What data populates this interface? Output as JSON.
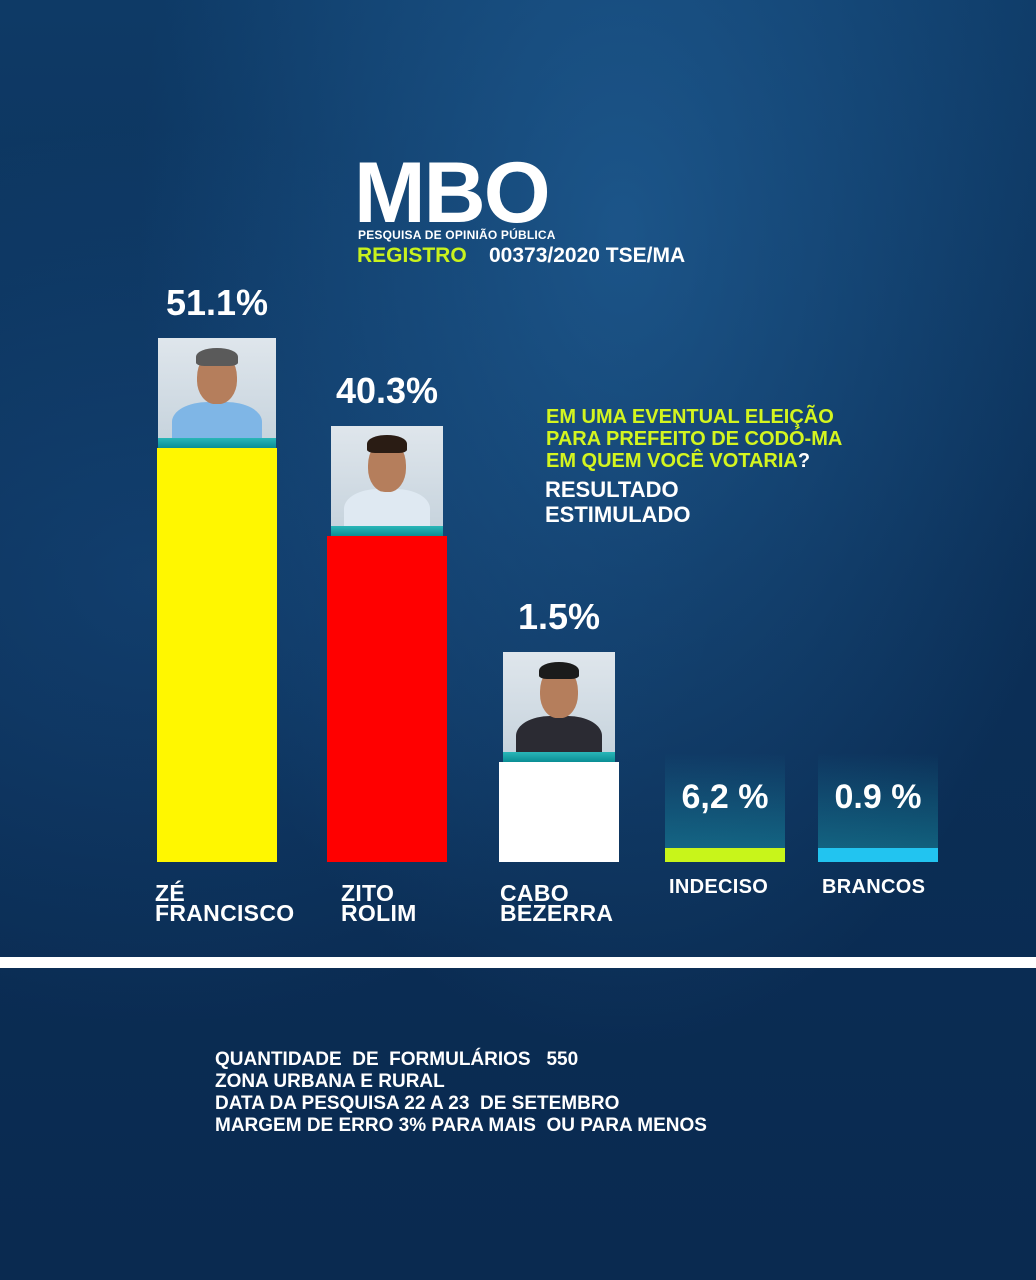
{
  "header": {
    "brand": "MBO",
    "subtitle": "PESQUISA DE OPINIÃO PÚBLICA",
    "registro_label": "REGISTRO",
    "registro_value": "00373/2020 TSE/MA"
  },
  "question": {
    "line1": "EM UMA EVENTUAL ELEIÇÃO",
    "line2": "PARA PREFEITO DE CODÓ-MA",
    "line3": "EM QUEM VOCÊ VOTARIA",
    "qmark": "?",
    "result_line1": "RESULTADO",
    "result_line2": "ESTIMULADO"
  },
  "chart_data": {
    "type": "bar",
    "categories": [
      "ZÉ FRANCISCO",
      "ZITO ROLIM",
      "CABO BEZERRA",
      "INDECISO",
      "BRANCOS"
    ],
    "category_lines": [
      [
        "ZÉ",
        "FRANCISCO"
      ],
      [
        "ZITO",
        "ROLIM"
      ],
      [
        "CABO",
        "BEZERRA"
      ],
      [
        "INDECISO"
      ],
      [
        "BRANCOS"
      ]
    ],
    "values": [
      51.1,
      40.3,
      1.5,
      6.2,
      0.9
    ],
    "value_labels": [
      "51.1%",
      "40.3%",
      "1.5%",
      "6,2 %",
      "0.9 %"
    ],
    "colors": [
      "#fff700",
      "#ff0000",
      "#ffffff",
      "#c8f51a",
      "#22c4f0"
    ],
    "has_photo": [
      true,
      true,
      true,
      false,
      false
    ],
    "title": "",
    "xlabel": "",
    "ylabel": "",
    "grid": false,
    "legend": "none"
  },
  "footer": {
    "line1": "QUANTIDADE  DE  FORMULÁRIOS   550",
    "line2": "ZONA URBANA E RURAL",
    "line3": "DATA DA PESQUISA 22 A 23  DE SETEMBRO",
    "line4": "MARGEM DE ERRO 3% PARA MAIS  OU PARA MENOS"
  }
}
